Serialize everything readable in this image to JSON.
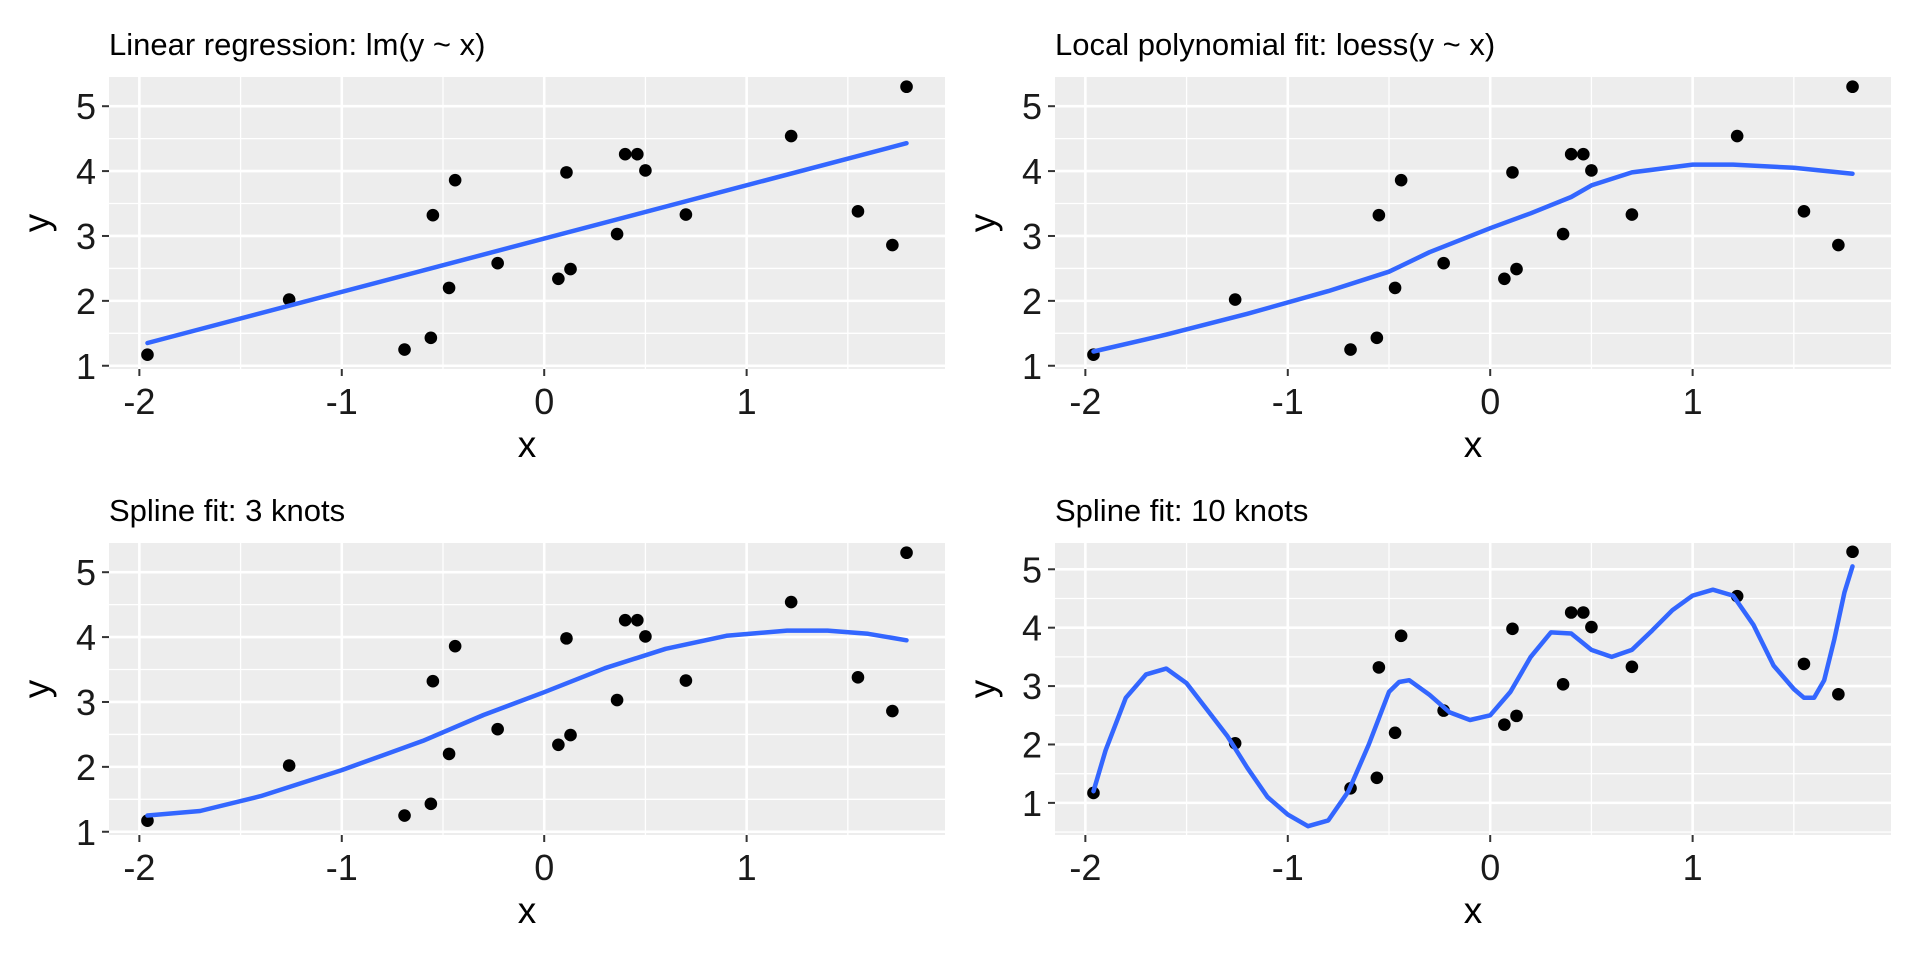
{
  "chart_data": [
    {
      "type": "scatter",
      "title": "Linear regression: lm(y ~ x)",
      "xlabel": "x",
      "ylabel": "y",
      "xlim": [
        -2.15,
        1.98
      ],
      "ylim": [
        0.95,
        5.45
      ],
      "x_ticks": [
        "-2",
        "-1",
        "0",
        "1"
      ],
      "y_ticks": [
        "1",
        "2",
        "3",
        "4",
        "5"
      ],
      "grid": true,
      "points": {
        "x": [
          -1.96,
          -1.26,
          -0.69,
          -0.56,
          -0.55,
          -0.47,
          -0.44,
          -0.23,
          0.07,
          0.11,
          0.13,
          0.36,
          0.4,
          0.46,
          0.5,
          0.7,
          1.22,
          1.55,
          1.72,
          1.79
        ],
        "y": [
          1.17,
          2.02,
          1.25,
          1.43,
          3.32,
          2.2,
          3.86,
          2.58,
          2.34,
          3.98,
          2.49,
          3.03,
          4.26,
          4.26,
          4.01,
          3.33,
          4.54,
          3.38,
          2.86,
          5.3
        ]
      },
      "series": [
        {
          "x": [
            -1.96,
            1.79
          ],
          "y": [
            1.35,
            4.43
          ]
        }
      ],
      "colors": {
        "points": "#000000",
        "line": "#3366ff"
      }
    },
    {
      "type": "scatter",
      "title": "Local polynomial fit: loess(y ~ x)",
      "xlabel": "x",
      "ylabel": "y",
      "xlim": [
        -2.15,
        1.98
      ],
      "ylim": [
        0.95,
        5.45
      ],
      "x_ticks": [
        "-2",
        "-1",
        "0",
        "1"
      ],
      "y_ticks": [
        "1",
        "2",
        "3",
        "4",
        "5"
      ],
      "grid": true,
      "points": {
        "x": [
          -1.96,
          -1.26,
          -0.69,
          -0.56,
          -0.55,
          -0.47,
          -0.44,
          -0.23,
          0.07,
          0.11,
          0.13,
          0.36,
          0.4,
          0.46,
          0.5,
          0.7,
          1.22,
          1.55,
          1.72,
          1.79
        ],
        "y": [
          1.17,
          2.02,
          1.25,
          1.43,
          3.32,
          2.2,
          3.86,
          2.58,
          2.34,
          3.98,
          2.49,
          3.03,
          4.26,
          4.26,
          4.01,
          3.33,
          4.54,
          3.38,
          2.86,
          5.3
        ]
      },
      "series": [
        {
          "x": [
            -1.96,
            -1.6,
            -1.2,
            -0.8,
            -0.5,
            -0.3,
            0.0,
            0.2,
            0.4,
            0.5,
            0.7,
            1.0,
            1.2,
            1.5,
            1.79
          ],
          "y": [
            1.22,
            1.48,
            1.8,
            2.15,
            2.45,
            2.75,
            3.12,
            3.35,
            3.6,
            3.78,
            3.98,
            4.1,
            4.1,
            4.05,
            3.96
          ]
        }
      ],
      "colors": {
        "points": "#000000",
        "line": "#3366ff"
      }
    },
    {
      "type": "scatter",
      "title": "Spline fit: 3 knots",
      "xlabel": "x",
      "ylabel": "y",
      "xlim": [
        -2.15,
        1.98
      ],
      "ylim": [
        0.95,
        5.45
      ],
      "x_ticks": [
        "-2",
        "-1",
        "0",
        "1"
      ],
      "y_ticks": [
        "1",
        "2",
        "3",
        "4",
        "5"
      ],
      "grid": true,
      "points": {
        "x": [
          -1.96,
          -1.26,
          -0.69,
          -0.56,
          -0.55,
          -0.47,
          -0.44,
          -0.23,
          0.07,
          0.11,
          0.13,
          0.36,
          0.4,
          0.46,
          0.5,
          0.7,
          1.22,
          1.55,
          1.72,
          1.79
        ],
        "y": [
          1.17,
          2.02,
          1.25,
          1.43,
          3.32,
          2.2,
          3.86,
          2.58,
          2.34,
          3.98,
          2.49,
          3.03,
          4.26,
          4.26,
          4.01,
          3.33,
          4.54,
          3.38,
          2.86,
          5.3
        ]
      },
      "series": [
        {
          "x": [
            -1.96,
            -1.7,
            -1.4,
            -1.0,
            -0.6,
            -0.3,
            0.0,
            0.3,
            0.6,
            0.9,
            1.2,
            1.4,
            1.6,
            1.79
          ],
          "y": [
            1.25,
            1.32,
            1.55,
            1.95,
            2.4,
            2.8,
            3.15,
            3.52,
            3.82,
            4.02,
            4.1,
            4.1,
            4.05,
            3.95
          ]
        }
      ],
      "colors": {
        "points": "#000000",
        "line": "#3366ff"
      }
    },
    {
      "type": "scatter",
      "title": "Spline fit: 10 knots",
      "xlabel": "x",
      "ylabel": "y",
      "xlim": [
        -2.15,
        1.98
      ],
      "ylim": [
        0.45,
        5.45
      ],
      "x_ticks": [
        "-2",
        "-1",
        "0",
        "1"
      ],
      "y_ticks": [
        "1",
        "2",
        "3",
        "4",
        "5"
      ],
      "grid": true,
      "points": {
        "x": [
          -1.96,
          -1.26,
          -0.69,
          -0.56,
          -0.55,
          -0.47,
          -0.44,
          -0.23,
          0.07,
          0.11,
          0.13,
          0.36,
          0.4,
          0.46,
          0.5,
          0.7,
          1.22,
          1.55,
          1.72,
          1.79
        ],
        "y": [
          1.17,
          2.02,
          1.25,
          1.43,
          3.32,
          2.2,
          3.86,
          2.58,
          2.34,
          3.98,
          2.49,
          3.03,
          4.26,
          4.26,
          4.01,
          3.33,
          4.54,
          3.38,
          2.86,
          5.3
        ]
      },
      "series": [
        {
          "x": [
            -1.96,
            -1.9,
            -1.8,
            -1.7,
            -1.6,
            -1.5,
            -1.4,
            -1.3,
            -1.2,
            -1.1,
            -1.0,
            -0.9,
            -0.8,
            -0.7,
            -0.6,
            -0.5,
            -0.45,
            -0.4,
            -0.3,
            -0.2,
            -0.1,
            0.0,
            0.1,
            0.2,
            0.3,
            0.4,
            0.5,
            0.6,
            0.7,
            0.8,
            0.9,
            1.0,
            1.1,
            1.2,
            1.3,
            1.4,
            1.5,
            1.55,
            1.6,
            1.65,
            1.7,
            1.75,
            1.79
          ],
          "y": [
            1.2,
            1.9,
            2.8,
            3.2,
            3.3,
            3.05,
            2.6,
            2.15,
            1.6,
            1.1,
            0.8,
            0.6,
            0.7,
            1.2,
            2.0,
            2.9,
            3.07,
            3.1,
            2.85,
            2.55,
            2.42,
            2.5,
            2.9,
            3.5,
            3.92,
            3.9,
            3.62,
            3.5,
            3.62,
            3.95,
            4.3,
            4.55,
            4.65,
            4.55,
            4.05,
            3.35,
            2.95,
            2.8,
            2.8,
            3.1,
            3.8,
            4.6,
            5.05
          ]
        }
      ],
      "colors": {
        "points": "#000000",
        "line": "#3366ff"
      }
    }
  ]
}
